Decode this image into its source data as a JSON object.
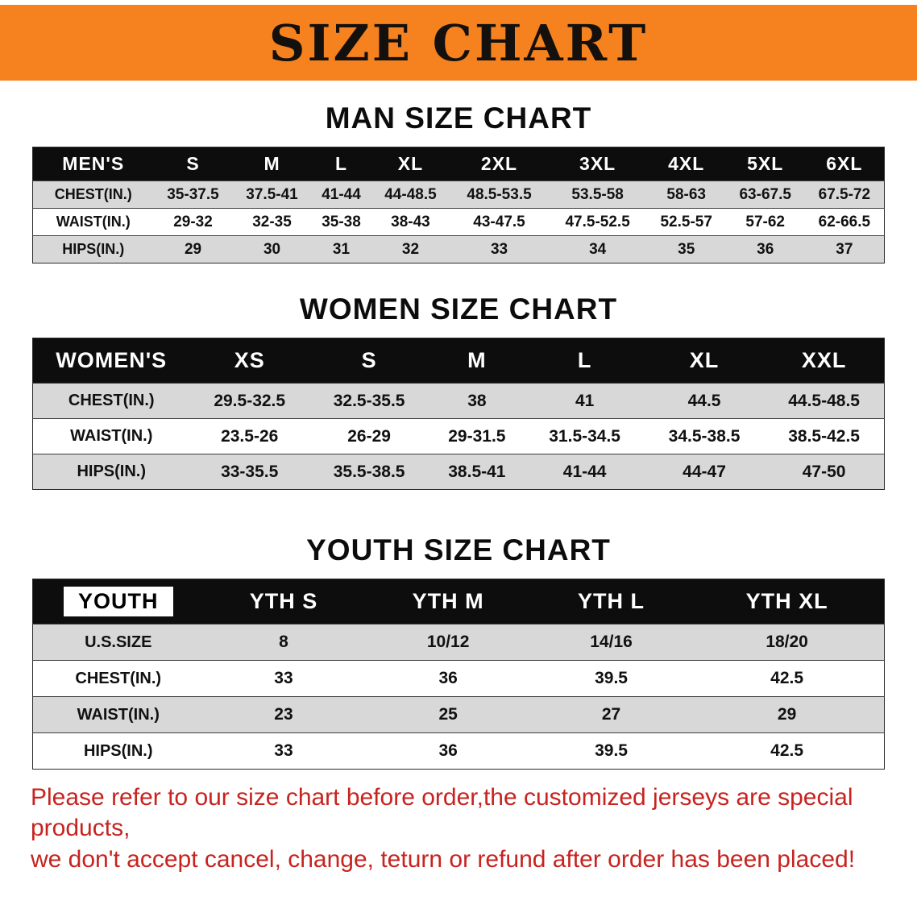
{
  "banner": {
    "title": "SIZE CHART",
    "bg_color": "#f5821f"
  },
  "sections": [
    {
      "title": "MAN SIZE CHART",
      "table": {
        "header": [
          "MEN'S",
          "S",
          "M",
          "L",
          "XL",
          "2XL",
          "3XL",
          "4XL",
          "5XL",
          "6XL"
        ],
        "rows": [
          {
            "label": "CHEST(IN.)",
            "values": [
              "35-37.5",
              "37.5-41",
              "41-44",
              "44-48.5",
              "48.5-53.5",
              "53.5-58",
              "58-63",
              "63-67.5",
              "67.5-72"
            ]
          },
          {
            "label": "WAIST(IN.)",
            "values": [
              "29-32",
              "32-35",
              "35-38",
              "38-43",
              "43-47.5",
              "47.5-52.5",
              "52.5-57",
              "57-62",
              "62-66.5"
            ]
          },
          {
            "label": "HIPS(IN.)",
            "values": [
              "29",
              "30",
              "31",
              "32",
              "33",
              "34",
              "35",
              "36",
              "37"
            ]
          }
        ]
      }
    },
    {
      "title": "WOMEN SIZE CHART",
      "table": {
        "header": [
          "WOMEN'S",
          "XS",
          "S",
          "M",
          "L",
          "XL",
          "XXL"
        ],
        "rows": [
          {
            "label": "CHEST(IN.)",
            "values": [
              "29.5-32.5",
              "32.5-35.5",
              "38",
              "41",
              "44.5",
              "44.5-48.5"
            ]
          },
          {
            "label": "WAIST(IN.)",
            "values": [
              "23.5-26",
              "26-29",
              "29-31.5",
              "31.5-34.5",
              "34.5-38.5",
              "38.5-42.5"
            ]
          },
          {
            "label": "HIPS(IN.)",
            "values": [
              "33-35.5",
              "35.5-38.5",
              "38.5-41",
              "41-44",
              "44-47",
              "47-50"
            ]
          }
        ]
      }
    },
    {
      "title": "YOUTH SIZE CHART",
      "table": {
        "header": [
          "YOUTH",
          "YTH S",
          "YTH M",
          "YTH L",
          "YTH XL"
        ],
        "rows": [
          {
            "label": "U.S.SIZE",
            "values": [
              "8",
              "10/12",
              "14/16",
              "18/20"
            ]
          },
          {
            "label": "CHEST(IN.)",
            "values": [
              "33",
              "36",
              "39.5",
              "42.5"
            ]
          },
          {
            "label": "WAIST(IN.)",
            "values": [
              "23",
              "25",
              "27",
              "29"
            ]
          },
          {
            "label": "HIPS(IN.)",
            "values": [
              "33",
              "36",
              "39.5",
              "42.5"
            ]
          }
        ]
      }
    }
  ],
  "disclaimer": {
    "color": "#c7231f",
    "lines": [
      "Please refer to our size chart before order,the customized jerseys are special products,",
      "we don't accept cancel, change, teturn or refund after order has been placed!"
    ]
  }
}
